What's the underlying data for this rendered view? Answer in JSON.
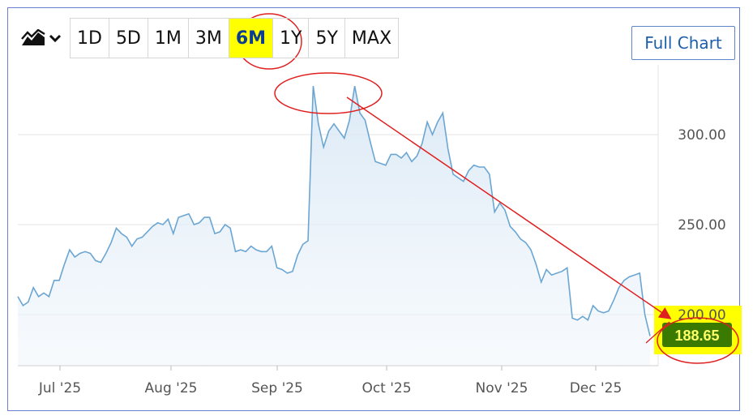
{
  "toolbar": {
    "chart_type_icon": "mountain-chart-icon",
    "dropdown_icon": "chevron-down-icon",
    "ranges": [
      "1D",
      "5D",
      "1M",
      "3M",
      "6M",
      "1Y",
      "5Y",
      "MAX"
    ],
    "active_range": "6M",
    "full_chart_label": "Full Chart"
  },
  "colors": {
    "line": "#6ba6d3",
    "highlight": "#ffff00",
    "price_badge": "#3a7a00",
    "annotation": "#e02020"
  },
  "chart_data": {
    "type": "area",
    "x_ticks": [
      "Jul '25",
      "Aug '25",
      "Sep '25",
      "Oct '25",
      "Nov '25",
      "Dec '25"
    ],
    "y_ticks": [
      "200.00",
      "250.00",
      "300.00"
    ],
    "ylim": [
      172,
      330
    ],
    "last_price": "188.65",
    "grid": true,
    "series": [
      {
        "values": [
          210,
          205,
          207,
          215,
          210,
          212,
          210,
          219,
          219,
          228,
          236,
          232,
          234,
          235,
          234,
          230,
          229,
          234,
          240,
          248,
          245,
          243,
          238,
          242,
          243,
          246,
          249,
          251,
          250,
          253,
          245,
          254,
          255,
          256,
          250,
          251,
          254,
          254,
          245,
          246,
          250,
          248,
          235,
          236,
          235,
          238,
          236,
          235,
          235,
          238,
          226,
          225,
          223,
          224,
          233,
          239,
          241,
          327,
          306,
          293,
          302,
          306,
          302,
          298,
          308,
          327,
          312,
          308,
          296,
          285,
          284,
          283,
          289,
          289,
          287,
          290,
          285,
          288,
          295,
          307,
          300,
          307,
          312,
          292,
          278,
          276,
          274,
          280,
          283,
          282,
          282,
          278,
          257,
          262,
          258,
          249,
          246,
          242,
          240,
          236,
          228,
          218,
          225,
          222,
          223,
          224,
          226,
          198,
          197,
          199,
          197,
          205,
          202,
          201,
          202,
          208,
          215,
          219,
          221,
          222,
          223,
          200,
          188
        ]
      }
    ],
    "annotations": [
      "6M range circled",
      "peak circled",
      "downtrend arrow",
      "last price circled"
    ]
  }
}
